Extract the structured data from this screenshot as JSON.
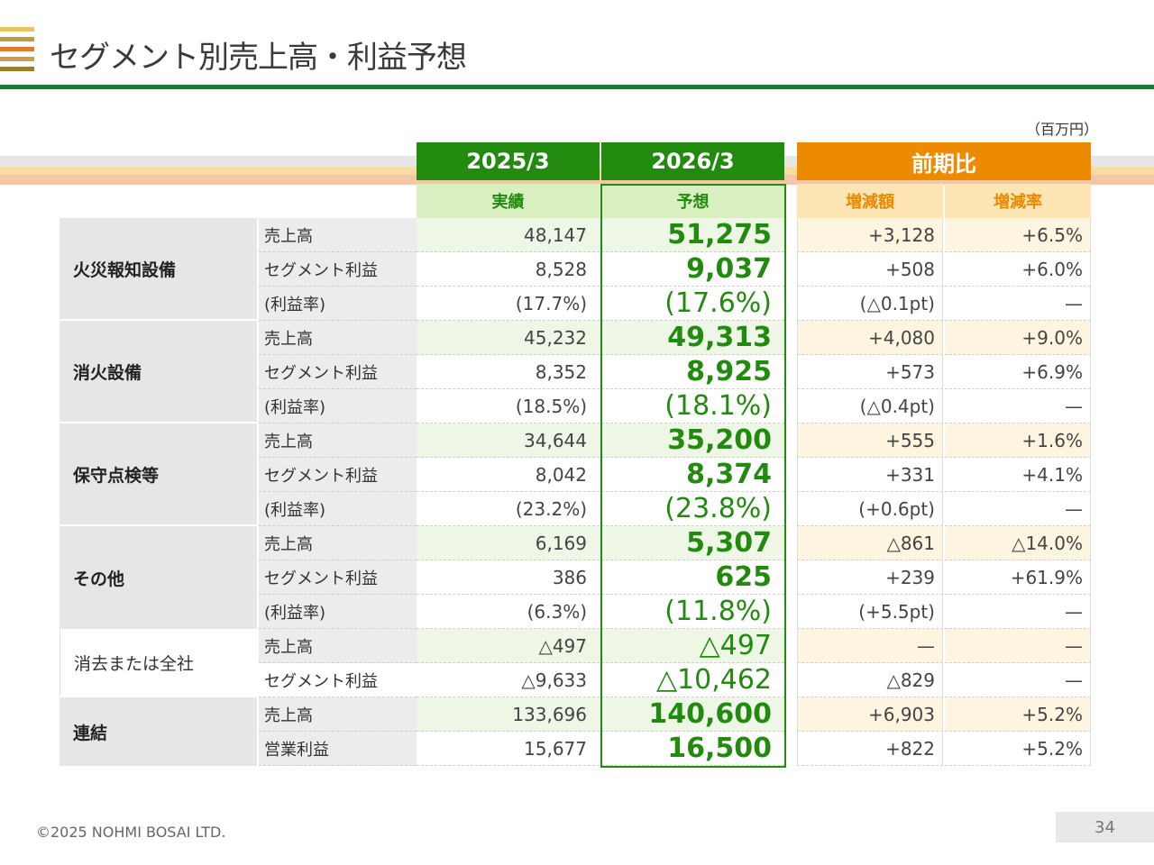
{
  "title": "セグメント別売上高・利益予想",
  "unit": "（百万円）",
  "colors": {
    "green": "#238a10",
    "orange": "#ec8a00",
    "rule": "#1e7b2c"
  },
  "headers": {
    "fy2025": "2025/3",
    "fy2026": "2026/3",
    "yoy": "前期比",
    "actual": "実績",
    "forecast": "予想",
    "change_amount": "増減額",
    "change_rate": "増減率"
  },
  "segments": [
    {
      "name": "火災報知設備",
      "rows": [
        {
          "item": "売上高",
          "actual": "48,147",
          "forecast": "51,275",
          "amount": "+3,128",
          "rate": "+6.5%"
        },
        {
          "item": "セグメント利益",
          "actual": "8,528",
          "forecast": "9,037",
          "amount": "+508",
          "rate": "+6.0%"
        },
        {
          "item": "(利益率)",
          "actual": "(17.7%)",
          "forecast": "(17.6%)",
          "amount": "(△0.1pt)",
          "rate": "—"
        }
      ]
    },
    {
      "name": "消火設備",
      "rows": [
        {
          "item": "売上高",
          "actual": "45,232",
          "forecast": "49,313",
          "amount": "+4,080",
          "rate": "+9.0%"
        },
        {
          "item": "セグメント利益",
          "actual": "8,352",
          "forecast": "8,925",
          "amount": "+573",
          "rate": "+6.9%"
        },
        {
          "item": "(利益率)",
          "actual": "(18.5%)",
          "forecast": "(18.1%)",
          "amount": "(△0.4pt)",
          "rate": "—"
        }
      ]
    },
    {
      "name": "保守点検等",
      "rows": [
        {
          "item": "売上高",
          "actual": "34,644",
          "forecast": "35,200",
          "amount": "+555",
          "rate": "+1.6%"
        },
        {
          "item": "セグメント利益",
          "actual": "8,042",
          "forecast": "8,374",
          "amount": "+331",
          "rate": "+4.1%"
        },
        {
          "item": "(利益率)",
          "actual": "(23.2%)",
          "forecast": "(23.8%)",
          "amount": "(+0.6pt)",
          "rate": "—"
        }
      ]
    },
    {
      "name": "その他",
      "rows": [
        {
          "item": "売上高",
          "actual": "6,169",
          "forecast": "5,307",
          "amount": "△861",
          "rate": "△14.0%"
        },
        {
          "item": "セグメント利益",
          "actual": "386",
          "forecast": "625",
          "amount": "+239",
          "rate": "+61.9%"
        },
        {
          "item": "(利益率)",
          "actual": "(6.3%)",
          "forecast": "(11.8%)",
          "amount": "(+5.5pt)",
          "rate": "—"
        }
      ]
    },
    {
      "name": "消去または全社",
      "rows": [
        {
          "item": "売上高",
          "actual": "△497",
          "forecast": "△497",
          "amount": "—",
          "rate": "—"
        },
        {
          "item": "セグメント利益",
          "actual": "△9,633",
          "forecast": "△10,462",
          "amount": "△829",
          "rate": "—"
        }
      ]
    },
    {
      "name": "連結",
      "rows": [
        {
          "item": "売上高",
          "actual": "133,696",
          "forecast": "140,600",
          "amount": "+6,903",
          "rate": "+5.2%"
        },
        {
          "item": "営業利益",
          "actual": "15,677",
          "forecast": "16,500",
          "amount": "+822",
          "rate": "+5.2%"
        }
      ]
    }
  ],
  "footer": "©2025 NOHMI BOSAI LTD.",
  "page_number": "34"
}
